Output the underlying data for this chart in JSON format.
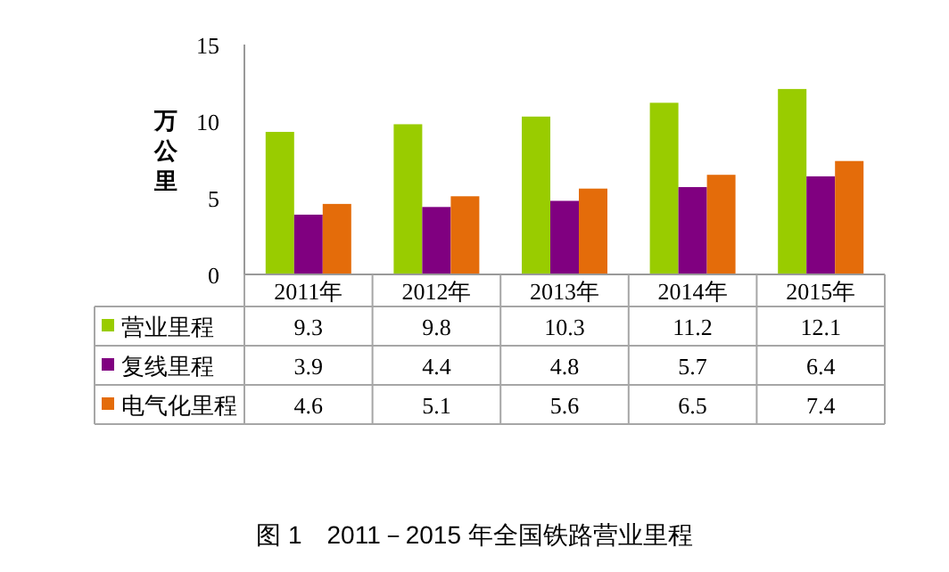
{
  "chart_data": {
    "type": "bar",
    "title": "图 1　2011－2015 年全国铁路营业里程",
    "ylabel": "万公里",
    "categories": [
      "2011年",
      "2012年",
      "2013年",
      "2014年",
      "2015年"
    ],
    "series": [
      {
        "name": "营业里程",
        "color": "#99cc00",
        "values": [
          9.3,
          9.8,
          10.3,
          11.2,
          12.1
        ]
      },
      {
        "name": "复线里程",
        "color": "#800080",
        "values": [
          3.9,
          4.4,
          4.8,
          5.7,
          6.4
        ]
      },
      {
        "name": "电气化里程",
        "color": "#e46c0a",
        "values": [
          4.6,
          5.1,
          5.6,
          6.5,
          7.4
        ]
      }
    ],
    "ylim": [
      0,
      15
    ],
    "yticks": [
      0,
      5,
      10,
      15
    ],
    "data_labels": true,
    "legend": "bottom",
    "grid": false
  }
}
